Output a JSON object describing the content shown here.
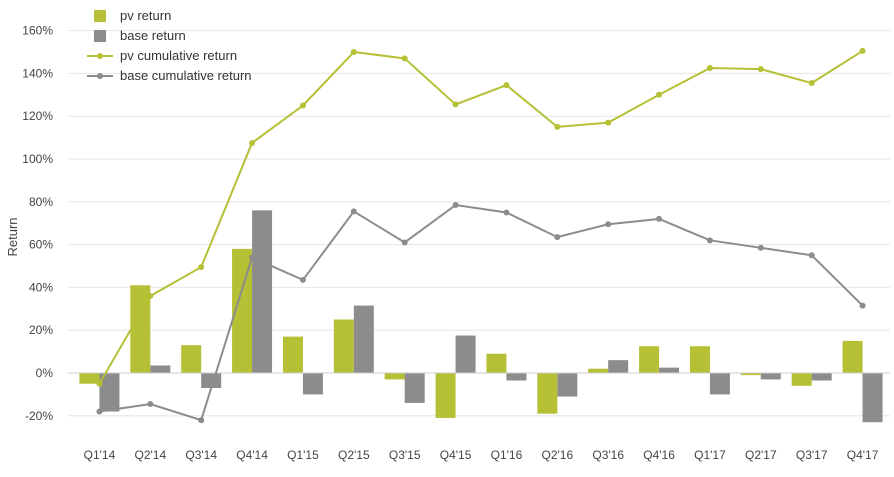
{
  "chart_data": {
    "type": "bar+line",
    "categories": [
      "Q1'14",
      "Q2'14",
      "Q3'14",
      "Q4'14",
      "Q1'15",
      "Q2'15",
      "Q3'15",
      "Q4'15",
      "Q1'16",
      "Q2'16",
      "Q3'16",
      "Q4'16",
      "Q1'17",
      "Q2'17",
      "Q3'17",
      "Q4'17"
    ],
    "ylabel": "Return",
    "ylim": [
      -20,
      160
    ],
    "yticks": [
      -20,
      0,
      20,
      40,
      60,
      80,
      100,
      120,
      140,
      160
    ],
    "ytick_labels": [
      "-20%",
      "0%",
      "20%",
      "40%",
      "60%",
      "80%",
      "100%",
      "120%",
      "140%",
      "160%"
    ],
    "grid": true,
    "legend_position": "top-left",
    "series": [
      {
        "name": "pv return",
        "type": "bar",
        "color": "#b5c034",
        "values": [
          -5,
          41,
          13,
          58,
          17,
          25,
          -3,
          -21,
          9,
          -19,
          2,
          12.5,
          12.5,
          -1,
          -6,
          15
        ]
      },
      {
        "name": "base return",
        "type": "bar",
        "color": "#8c8c8c",
        "values": [
          -18,
          3.5,
          -7,
          76,
          -10,
          31.5,
          -14,
          17.5,
          -3.5,
          -11,
          6,
          2.5,
          -10,
          -3,
          -3.5,
          -23
        ]
      },
      {
        "name": "pv cumulative return",
        "type": "line",
        "color": "#b5c034",
        "values": [
          -5,
          36,
          49.5,
          107.5,
          125,
          150,
          147,
          125.5,
          134.5,
          115,
          117,
          130,
          142.5,
          142,
          135.5,
          150.5
        ]
      },
      {
        "name": "base cumulative return",
        "type": "line",
        "color": "#8c8c8c",
        "values": [
          -18,
          -14.5,
          -22,
          54,
          43.5,
          75.5,
          61,
          78.5,
          75,
          63.5,
          69.5,
          72,
          62,
          58.5,
          55,
          31.5
        ]
      }
    ]
  }
}
